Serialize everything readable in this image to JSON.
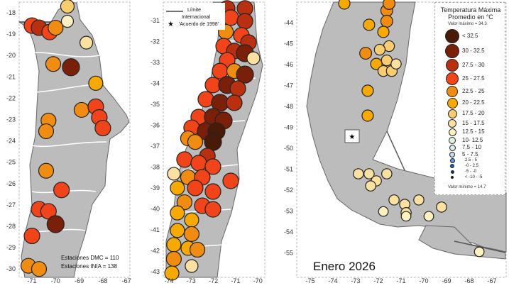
{
  "legend": {
    "title_line1": "Temperatura Máxima",
    "title_line2": "Promedio en °C",
    "max_label": "Valor máximo = 34.3",
    "min_label": "Valor mínimo = 14.7",
    "classes": [
      {
        "label": "< 32.5",
        "color": "#4a1a08"
      },
      {
        "label": "30 - 32.5",
        "color": "#7a1f0a"
      },
      {
        "label": "27.5 - 30",
        "color": "#b8300f"
      },
      {
        "label": "25 - 27.5",
        "color": "#f2441a"
      },
      {
        "label": "22.5 - 25",
        "color": "#f08c12"
      },
      {
        "label": "20 - 22.5",
        "color": "#f7a900"
      },
      {
        "label": "17.5 - 20",
        "color": "#f8cd70"
      },
      {
        "label": "15 - 17.5",
        "color": "#fbe0a2"
      },
      {
        "label": "12.5 - 15",
        "color": "#fdf1c2"
      },
      {
        "label": "10- 12.5",
        "color": "#d8f2dc"
      },
      {
        "label": "7.5 - 10",
        "color": "#d8efe6"
      },
      {
        "label": "5 - 7.5",
        "color": "#c8def7"
      },
      {
        "label": "2.5 - 5",
        "color": "#5a9ae0"
      },
      {
        "label": "-0 - 2.5",
        "color": "#1f5fb0"
      },
      {
        "label": "-5 - -0",
        "color": "#173a7a"
      },
      {
        "label": "< -10 - -5",
        "color": "#111111"
      }
    ]
  },
  "boundary_legend": {
    "line_label_1": "Límite",
    "line_label_2": "Internacional",
    "star_label": "'Acuerdo de 1998'"
  },
  "stations_text": {
    "dmc": "Estaciones DMC = 110",
    "inia": "Estaciones INIA = 138"
  },
  "period_label": "Enero 2026",
  "panels": [
    {
      "lon_ticks": [
        -71,
        -70,
        -69,
        -68,
        -67
      ],
      "lat_ticks": [
        -18,
        -19,
        -20,
        -21,
        -22,
        -23,
        -24,
        -25,
        -26,
        -27,
        -28,
        -29,
        -30
      ],
      "stations": [
        [
          -71.0,
          -18.6,
          3
        ],
        [
          -70.7,
          -18.7,
          2
        ],
        [
          -70.25,
          -18.9,
          3
        ],
        [
          -70.0,
          -18.7,
          4
        ],
        [
          -69.5,
          -17.7,
          6
        ],
        [
          -69.5,
          -18.4,
          8
        ],
        [
          -68.7,
          -19.4,
          7
        ],
        [
          -70.1,
          -20.4,
          4
        ],
        [
          -69.35,
          -20.55,
          1
        ],
        [
          -68.3,
          -21.3,
          5
        ],
        [
          -68.9,
          -22.55,
          4
        ],
        [
          -68.3,
          -22.4,
          3
        ],
        [
          -68.15,
          -22.9,
          3
        ],
        [
          -68.0,
          -23.4,
          3
        ],
        [
          -70.3,
          -23.05,
          4
        ],
        [
          -70.4,
          -23.55,
          4
        ],
        [
          -70.4,
          -25.4,
          4
        ],
        [
          -69.75,
          -26.3,
          3
        ],
        [
          -70.7,
          -27.2,
          3
        ],
        [
          -70.3,
          -27.3,
          3
        ],
        [
          -70.0,
          -27.9,
          1
        ],
        [
          -71.0,
          -28.45,
          3
        ],
        [
          -71.15,
          -29.85,
          4
        ],
        [
          -70.7,
          -30.0,
          4
        ]
      ]
    },
    {
      "lon_ticks": [
        -74,
        -73,
        -72,
        -71,
        -70
      ],
      "lat_ticks": [
        -31,
        -32,
        -33,
        -34,
        -35,
        -36,
        -37,
        -38,
        -39,
        -40,
        -41,
        -42,
        -43
      ],
      "stations": [
        [
          -71.38,
          -30.42,
          2
        ],
        [
          -70.58,
          -30.42,
          2
        ],
        [
          -71.22,
          -30.86,
          3
        ],
        [
          -70.58,
          -31.03,
          2
        ],
        [
          -71.44,
          -31.54,
          4
        ],
        [
          -70.74,
          -31.71,
          3
        ],
        [
          -70.42,
          -32.05,
          2
        ],
        [
          -71.54,
          -32.22,
          3
        ],
        [
          -71.06,
          -32.46,
          2
        ],
        [
          -70.58,
          -32.56,
          1
        ],
        [
          -71.38,
          -32.9,
          3
        ],
        [
          -70.2,
          -32.8,
          7
        ],
        [
          -71.7,
          -33.41,
          3
        ],
        [
          -71.06,
          -33.41,
          4
        ],
        [
          -70.58,
          -33.58,
          1
        ],
        [
          -72.02,
          -34.08,
          3
        ],
        [
          -71.38,
          -34.08,
          1
        ],
        [
          -70.9,
          -34.25,
          2
        ],
        [
          -72.34,
          -34.76,
          3
        ],
        [
          -71.7,
          -34.93,
          1
        ],
        [
          -71.06,
          -34.93,
          2
        ],
        [
          -72.66,
          -35.61,
          3
        ],
        [
          -72.02,
          -35.61,
          1
        ],
        [
          -71.54,
          -35.78,
          1
        ],
        [
          -72.98,
          -36.12,
          3
        ],
        [
          -72.34,
          -36.29,
          1
        ],
        [
          -71.86,
          -36.29,
          0
        ],
        [
          -72.02,
          -36.8,
          0
        ],
        [
          -73.14,
          -36.63,
          4
        ],
        [
          -72.82,
          -36.8,
          4
        ],
        [
          -72.27,
          -37.47,
          2
        ],
        [
          -73.3,
          -37.64,
          3
        ],
        [
          -72.66,
          -37.81,
          3
        ],
        [
          -72.02,
          -37.98,
          3
        ],
        [
          -73.78,
          -38.32,
          7
        ],
        [
          -73.14,
          -38.49,
          4
        ],
        [
          -72.5,
          -38.49,
          3
        ],
        [
          -73.62,
          -39.0,
          5
        ],
        [
          -72.82,
          -39.0,
          3
        ],
        [
          -72.02,
          -39.17,
          3
        ],
        [
          -71.22,
          -38.66,
          3
        ],
        [
          -73.3,
          -39.68,
          4
        ],
        [
          -72.5,
          -39.85,
          3
        ],
        [
          -72.02,
          -40.02,
          3
        ],
        [
          -73.62,
          -40.19,
          5
        ],
        [
          -72.98,
          -40.53,
          5
        ],
        [
          -73.62,
          -41.03,
          5
        ],
        [
          -72.98,
          -41.2,
          4
        ],
        [
          -73.78,
          -41.71,
          5
        ],
        [
          -73.14,
          -41.88,
          5
        ],
        [
          -73.78,
          -42.39,
          4
        ],
        [
          -73.87,
          -43.07,
          5
        ],
        [
          -72.98,
          -42.73,
          7
        ],
        [
          -72.72,
          -41.95,
          4
        ]
      ]
    },
    {
      "lon_ticks": [
        -75,
        -74,
        -73,
        -72,
        -71,
        -70,
        -69,
        -68,
        -67
      ],
      "lat_ticks": [
        -44,
        -45,
        -46,
        -47,
        -48,
        -49,
        -50,
        -51,
        -52,
        -53,
        -54,
        -55
      ],
      "star": [
        -73.16,
        -49.42
      ],
      "stations": [
        [
          -73.5,
          -43.08,
          5
        ],
        [
          -71.63,
          -43.42,
          4
        ],
        [
          -71.53,
          -43.08,
          4
        ],
        [
          -72.41,
          -44.1,
          5
        ],
        [
          -71.63,
          -43.93,
          4
        ],
        [
          -71.78,
          -44.44,
          5
        ],
        [
          -71.53,
          -45.12,
          6
        ],
        [
          -71.94,
          -45.29,
          6
        ],
        [
          -71.63,
          -45.8,
          6
        ],
        [
          -72.09,
          -45.97,
          5
        ],
        [
          -72.56,
          -45.46,
          4
        ],
        [
          -71.78,
          -46.31,
          6
        ],
        [
          -71.41,
          -46.31,
          6
        ],
        [
          -71.22,
          -45.97,
          7
        ],
        [
          -72.47,
          -47.25,
          5
        ],
        [
          -72.47,
          -48.44,
          5
        ],
        [
          -72.88,
          -51.22,
          7
        ],
        [
          -72.41,
          -51.22,
          7
        ],
        [
          -72.09,
          -51.56,
          7
        ],
        [
          -71.63,
          -51.22,
          7
        ],
        [
          -72.34,
          -51.8,
          7
        ],
        [
          -71.31,
          -52.47,
          7
        ],
        [
          -70.22,
          -52.47,
          7
        ],
        [
          -70.84,
          -52.68,
          7
        ],
        [
          -70.78,
          -53.08,
          7
        ],
        [
          -71.78,
          -53.02,
          8
        ],
        [
          -69.78,
          -53.25,
          8
        ],
        [
          -69.22,
          -52.81,
          7
        ],
        [
          -70.78,
          -53.25,
          8
        ],
        [
          -67.56,
          -54.95,
          8
        ]
      ]
    }
  ]
}
